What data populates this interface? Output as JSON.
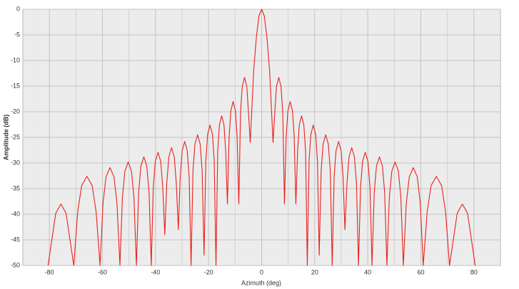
{
  "chart_data": {
    "type": "line",
    "x_label": "Azimuth (deg)",
    "y_label": "Amplitude (dB)",
    "xlim": [
      -90,
      90
    ],
    "ylim": [
      -50,
      0
    ],
    "xticks": [
      -80,
      -60,
      -40,
      -20,
      0,
      20,
      40,
      60,
      80
    ],
    "x_minor_gridlines": [
      -70,
      -50,
      -30,
      -10,
      10,
      30,
      50,
      70
    ],
    "yticks": [
      0,
      -5,
      -10,
      -15,
      -20,
      -25,
      -30,
      -35,
      -40,
      -45,
      -50
    ],
    "grid": true,
    "x": [
      -80.5,
      -79.05,
      -77.59,
      -75.65,
      -73.71,
      -72.26,
      -70.8,
      -69.32,
      -67.83,
      -65.85,
      -63.87,
      -62.39,
      -60.9,
      -59.78,
      -58.65,
      -57.15,
      -55.65,
      -54.53,
      -53.4,
      -52.47,
      -51.54,
      -50.3,
      -49.06,
      -48.13,
      -47.2,
      -46.36,
      -45.52,
      -44.4,
      -43.28,
      -42.44,
      -41.6,
      -40.84,
      -40.07,
      -39.05,
      -38.03,
      -37.27,
      -36.5,
      -35.74,
      -34.97,
      -33.95,
      -32.93,
      -32.17,
      -31.4,
      -30.68,
      -29.96,
      -29,
      -28.04,
      -27.32,
      -26.6,
      -25.87,
      -25.13,
      -24.15,
      -23.17,
      -22.44,
      -21.7,
      -21.03,
      -20.35,
      -19.45,
      -18.55,
      -17.88,
      -17.2,
      -16.56,
      -15.91,
      -15.05,
      -14.19,
      -13.55,
      -12.9,
      -12.26,
      -11.61,
      -10.75,
      -9.89,
      -9.25,
      -8.6,
      -7.96,
      -7.31,
      -6.45,
      -5.59,
      -4.95,
      -4.3,
      -3,
      -2,
      -1,
      0,
      1,
      2,
      3,
      4.3,
      4.95,
      5.59,
      6.45,
      7.31,
      7.96,
      8.6,
      9.25,
      9.89,
      10.75,
      11.61,
      12.26,
      12.9,
      13.55,
      14.19,
      15.05,
      15.91,
      16.56,
      17.2,
      17.88,
      18.55,
      19.45,
      20.35,
      21.03,
      21.7,
      22.44,
      23.17,
      24.15,
      25.13,
      25.87,
      26.6,
      27.32,
      28.04,
      29,
      29.96,
      30.68,
      31.4,
      32.17,
      32.93,
      33.95,
      34.97,
      35.74,
      36.5,
      37.27,
      38.03,
      39.05,
      40.07,
      40.84,
      41.6,
      42.44,
      43.28,
      44.4,
      45.52,
      46.36,
      47.2,
      48.13,
      49.06,
      50.3,
      51.54,
      52.47,
      53.4,
      54.53,
      55.65,
      57.15,
      58.65,
      59.78,
      60.9,
      62.39,
      63.87,
      65.85,
      67.83,
      69.32,
      70.8,
      72.26,
      73.71,
      75.65,
      77.59,
      79.05,
      80.5
    ],
    "series": [
      {
        "color": "#e8201c",
        "values": [
          -50,
          -44.9,
          -39.8,
          -38,
          -39.8,
          -44.9,
          -50,
          -39.5,
          -34.4,
          -32.6,
          -34.4,
          -39.5,
          -50,
          -37.8,
          -32.7,
          -30.9,
          -32.7,
          -37.8,
          -50,
          -36.7,
          -31.6,
          -29.8,
          -31.6,
          -36.7,
          -50,
          -35.7,
          -30.6,
          -28.8,
          -30.6,
          -35.7,
          -50,
          -34.8,
          -29.7,
          -27.9,
          -29.7,
          -34.8,
          -44,
          -33.9,
          -28.8,
          -27,
          -28.8,
          -33.9,
          -43,
          -32.7,
          -27.6,
          -25.8,
          -27.6,
          -32.7,
          -50,
          -31.4,
          -26.3,
          -24.5,
          -26.3,
          -31.4,
          -48,
          -29.5,
          -24.4,
          -22.6,
          -24.4,
          -29.5,
          -50,
          -27.7,
          -22.6,
          -20.8,
          -22.6,
          -27.7,
          -38,
          -24.9,
          -19.8,
          -18,
          -19.8,
          -24.9,
          -38,
          -20.2,
          -15.1,
          -13.3,
          -15.1,
          -20.2,
          -26,
          -12,
          -5.5,
          -1.3,
          0,
          -1.3,
          -5.5,
          -12,
          -26,
          -20.2,
          -15.1,
          -13.3,
          -15.1,
          -20.2,
          -38,
          -24.9,
          -19.8,
          -18,
          -19.8,
          -24.9,
          -38,
          -27.7,
          -22.6,
          -20.8,
          -22.6,
          -27.7,
          -50,
          -29.5,
          -24.4,
          -22.6,
          -24.4,
          -29.5,
          -48,
          -31.4,
          -26.3,
          -24.5,
          -26.3,
          -31.4,
          -50,
          -32.7,
          -27.6,
          -25.8,
          -27.6,
          -32.7,
          -43,
          -33.9,
          -28.8,
          -27,
          -28.8,
          -33.9,
          -50,
          -34.8,
          -29.7,
          -27.9,
          -29.7,
          -34.8,
          -50,
          -35.7,
          -30.6,
          -28.8,
          -30.6,
          -35.7,
          -50,
          -36.7,
          -31.6,
          -29.8,
          -31.6,
          -36.7,
          -50,
          -37.8,
          -32.7,
          -30.9,
          -32.7,
          -37.8,
          -50,
          -39.5,
          -34.4,
          -32.6,
          -34.4,
          -39.5,
          -50,
          -44.9,
          -39.8,
          -38,
          -39.8,
          -44.9,
          -50
        ]
      }
    ]
  }
}
